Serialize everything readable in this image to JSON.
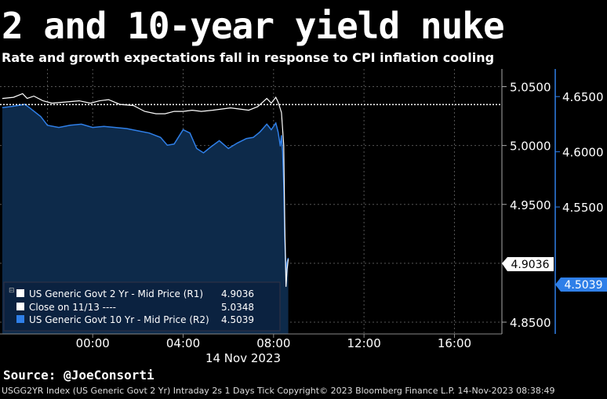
{
  "title": "2 and 10-year yield nuke",
  "subtitle": "Rate and growth expectations fall in response to CPI inflation cooling",
  "source": "Source: @JoeConsorti",
  "footer": "USGG2YR Index (US Generic Govt 2 Yr) Intraday 2s 1 Days  Tick Copyright© 2023 Bloomberg Finance L.P. 14-Nov-2023 08:38:49",
  "colors": {
    "series_2yr": "#ffffff",
    "series_10yr": "#2f7fe8",
    "area_fill": "#0d2a4a",
    "background": "#000000",
    "grid": "#555555"
  },
  "chart_data": {
    "type": "line",
    "x_tick_labels": [
      "00:00",
      "04:00",
      "08:00",
      "12:00",
      "16:00"
    ],
    "x_ticks_hours": [
      0,
      4,
      8,
      12,
      16
    ],
    "x_date_label": "14 Nov 2023",
    "xlim_hours": [
      -4.1,
      18.1
    ],
    "y_left": {
      "ylim": [
        4.84,
        5.065
      ],
      "ticks": [
        5.05,
        5.0,
        4.95,
        4.9,
        4.85
      ],
      "tick_labels": [
        "5.0500",
        "5.0000",
        "4.9500",
        "4.8500"
      ],
      "last_value_label": "4.9036",
      "last_value": 4.9036
    },
    "y_right": {
      "ylim": [
        4.435,
        4.675
      ],
      "ticks": [
        4.65,
        4.6,
        4.55
      ],
      "tick_labels": [
        "4.6500",
        "4.6000",
        "4.5500",
        "4.5039"
      ],
      "last_value_label": "4.5039",
      "last_value": 4.5039
    },
    "legend": {
      "placement": "bottom-left",
      "entries": [
        {
          "label": "US Generic Govt 2 Yr - Mid Price (R1)",
          "value": "4.9036"
        },
        {
          "label": "Close on 11/13 ----",
          "value": "5.0348"
        },
        {
          "label": "US Generic Govt 10 Yr - Mid Price (R2)",
          "value": "4.5039"
        }
      ]
    },
    "close_level": 5.0348,
    "series": [
      {
        "name": "US Generic Govt 2 Yr - Mid Price (R1)",
        "axis": "left",
        "x": [
          -4.0,
          -3.5,
          -3.1,
          -2.9,
          -2.6,
          -2.2,
          -1.8,
          -1.2,
          -0.6,
          -0.1,
          0.3,
          0.7,
          1.2,
          1.8,
          2.3,
          2.8,
          3.2,
          3.6,
          4.0,
          4.4,
          4.8,
          5.3,
          5.7,
          6.1,
          6.5,
          6.9,
          7.3,
          7.7,
          7.9,
          8.1,
          8.2,
          8.35,
          8.45,
          8.5,
          8.55,
          8.6,
          8.65
        ],
        "values": [
          5.04,
          5.041,
          5.044,
          5.04,
          5.042,
          5.038,
          5.036,
          5.037,
          5.038,
          5.036,
          5.038,
          5.039,
          5.035,
          5.034,
          5.029,
          5.027,
          5.027,
          5.029,
          5.029,
          5.03,
          5.029,
          5.03,
          5.031,
          5.032,
          5.031,
          5.03,
          5.033,
          5.04,
          5.036,
          5.041,
          5.037,
          5.028,
          5.0,
          4.93,
          4.88,
          4.895,
          4.9036
        ]
      },
      {
        "name": "US Generic Govt 10 Yr - Mid Price (R2)",
        "axis": "right",
        "x": [
          -4.0,
          -3.6,
          -3.0,
          -2.8,
          -2.3,
          -2.0,
          -1.5,
          -1.0,
          -0.5,
          0.0,
          0.5,
          1.0,
          1.5,
          2.0,
          2.5,
          3.0,
          3.3,
          3.6,
          4.0,
          4.3,
          4.6,
          4.9,
          5.2,
          5.6,
          6.0,
          6.4,
          6.8,
          7.1,
          7.4,
          7.7,
          7.9,
          8.1,
          8.2,
          8.3,
          8.35,
          8.4,
          8.45,
          8.5,
          8.55,
          8.6,
          8.65
        ],
        "values": [
          4.64,
          4.641,
          4.643,
          4.64,
          4.632,
          4.624,
          4.622,
          4.624,
          4.625,
          4.622,
          4.623,
          4.622,
          4.621,
          4.619,
          4.617,
          4.613,
          4.606,
          4.607,
          4.62,
          4.617,
          4.603,
          4.599,
          4.604,
          4.61,
          4.603,
          4.608,
          4.612,
          4.613,
          4.618,
          4.625,
          4.62,
          4.626,
          4.618,
          4.605,
          4.615,
          4.6,
          4.57,
          4.52,
          4.49,
          4.5,
          4.5039
        ]
      }
    ]
  }
}
